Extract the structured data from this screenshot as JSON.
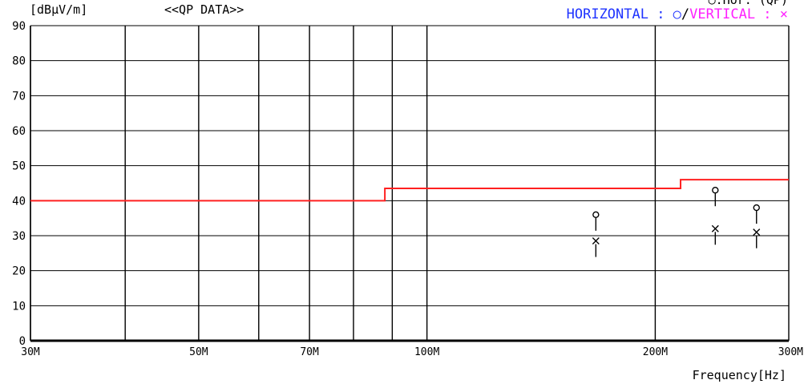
{
  "header": {
    "ylabel": "[dBμV/m]",
    "subtitle": "<<QP DATA>>",
    "legend_top": "○:Hor. (QP)",
    "legend_h_label": "HORIZONTAL : ○",
    "legend_sep": "/",
    "legend_v_label": "VERTICAL : ×"
  },
  "chart_data": {
    "type": "scatter",
    "title": "<<QP DATA>>",
    "xlabel": "Frequency[Hz]",
    "ylabel": "[dBμV/m]",
    "x_scale": "log",
    "xlim": [
      30,
      300
    ],
    "ylim": [
      0,
      90
    ],
    "y_ticks": [
      0,
      10,
      20,
      30,
      40,
      50,
      60,
      70,
      80,
      90
    ],
    "x_tick_values": [
      30,
      50,
      70,
      100,
      200,
      300
    ],
    "x_tick_labels": [
      "30M",
      "50M",
      "70M",
      "100M",
      "200M",
      "300M"
    ],
    "x_grid_lines": [
      30,
      40,
      50,
      60,
      70,
      80,
      90,
      100,
      200,
      300
    ],
    "grid": true,
    "legend_position": "top-right",
    "limit_line": {
      "color": "#ff2020",
      "points": [
        [
          30,
          40
        ],
        [
          88,
          40
        ],
        [
          88,
          43.5
        ],
        [
          216,
          43.5
        ],
        [
          216,
          46
        ],
        [
          300,
          46
        ]
      ]
    },
    "series": [
      {
        "name": "HORIZONTAL",
        "marker": "circle",
        "color": "#000000",
        "label_color": "#1f33ff",
        "points": [
          [
            167,
            36
          ],
          [
            240,
            43
          ],
          [
            272,
            38
          ]
        ]
      },
      {
        "name": "VERTICAL",
        "marker": "x",
        "color": "#000000",
        "label_color": "#ff20ff",
        "points": [
          [
            167,
            28.5
          ],
          [
            240,
            32
          ],
          [
            272,
            31
          ]
        ]
      }
    ]
  }
}
